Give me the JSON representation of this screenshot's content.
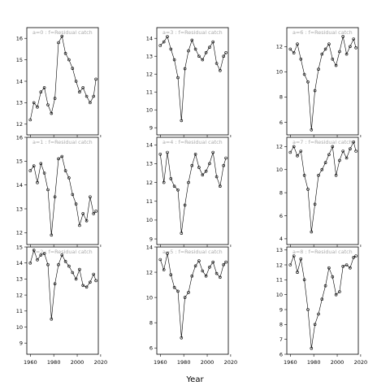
{
  "chart_data": {
    "type": "scatter",
    "title": "",
    "xlabel": "Year",
    "ylabel": "",
    "grid": false,
    "legend": "none",
    "layout": "3x3 small multiples, column-major (a=0,1,2 in column 1; a=3,4,5 in column 2; a=6,7,8 in column 3)",
    "series_style": "black points (open circles) with black line",
    "xlim": [
      1957,
      2018
    ],
    "xticks": [
      1960,
      1980,
      2000,
      2020
    ],
    "panels": [
      {
        "label": "a=0 : f=Residual catch",
        "ylim": [
          11.5,
          16.5
        ],
        "yticks": [
          12,
          13,
          14,
          15,
          16
        ],
        "x": [
          1960,
          1963,
          1966,
          1969,
          1972,
          1975,
          1978,
          1981,
          1984,
          1987,
          1990,
          1993,
          1996,
          1999,
          2002,
          2005,
          2008,
          2011,
          2014,
          2016
        ],
        "y": [
          12.2,
          13.0,
          12.8,
          13.5,
          13.7,
          12.9,
          12.5,
          13.2,
          15.8,
          16.1,
          15.3,
          15.0,
          14.6,
          14.0,
          13.5,
          13.7,
          13.3,
          13.0,
          13.3,
          14.1
        ]
      },
      {
        "label": "a=1 : f=Residual catch",
        "ylim": [
          11.5,
          16.0
        ],
        "yticks": [
          12,
          13,
          14,
          15,
          16
        ],
        "x": [
          1960,
          1963,
          1966,
          1969,
          1972,
          1975,
          1978,
          1981,
          1984,
          1987,
          1990,
          1993,
          1996,
          1999,
          2002,
          2005,
          2008,
          2011,
          2014,
          2016
        ],
        "y": [
          14.6,
          14.8,
          14.1,
          14.9,
          14.5,
          13.8,
          11.9,
          13.5,
          15.1,
          15.2,
          14.6,
          14.3,
          13.6,
          13.2,
          12.3,
          12.8,
          12.5,
          13.5,
          12.8,
          12.9
        ]
      },
      {
        "label": "a=2 : f=Residual catch",
        "ylim": [
          8.3,
          15.0
        ],
        "yticks": [
          9,
          10,
          11,
          12,
          13,
          14,
          15
        ],
        "x": [
          1960,
          1963,
          1966,
          1969,
          1972,
          1975,
          1978,
          1981,
          1984,
          1987,
          1990,
          1993,
          1996,
          1999,
          2002,
          2005,
          2008,
          2011,
          2014,
          2016
        ],
        "y": [
          14.0,
          14.8,
          14.2,
          14.5,
          14.6,
          13.9,
          10.5,
          12.7,
          13.9,
          14.5,
          14.1,
          13.8,
          13.4,
          13.0,
          13.6,
          12.6,
          12.5,
          12.8,
          13.3,
          12.9
        ]
      },
      {
        "label": "a=3 : f=Residual catch",
        "ylim": [
          8.6,
          14.6
        ],
        "yticks": [
          9,
          10,
          11,
          12,
          13,
          14
        ],
        "x": [
          1960,
          1963,
          1966,
          1969,
          1972,
          1975,
          1978,
          1981,
          1984,
          1987,
          1990,
          1993,
          1996,
          1999,
          2002,
          2005,
          2008,
          2011,
          2014,
          2016
        ],
        "y": [
          13.6,
          13.8,
          14.1,
          13.4,
          12.8,
          11.8,
          9.4,
          12.3,
          13.3,
          13.9,
          13.4,
          13.0,
          12.8,
          13.2,
          13.5,
          13.8,
          12.6,
          12.2,
          13.0,
          13.2
        ]
      },
      {
        "label": "a=4 : f=Residual catch",
        "ylim": [
          8.7,
          14.4
        ],
        "yticks": [
          9,
          10,
          11,
          12,
          13,
          14
        ],
        "x": [
          1960,
          1963,
          1966,
          1969,
          1972,
          1975,
          1978,
          1981,
          1984,
          1987,
          1990,
          1993,
          1996,
          1999,
          2002,
          2005,
          2008,
          2011,
          2014,
          2016
        ],
        "y": [
          13.5,
          12.0,
          13.6,
          12.2,
          11.8,
          11.6,
          9.3,
          10.8,
          12.0,
          12.9,
          13.5,
          12.8,
          12.4,
          12.6,
          13.0,
          13.6,
          12.3,
          11.8,
          12.9,
          13.3
        ]
      },
      {
        "label": "a=5 : f=Residual catch",
        "ylim": [
          5.5,
          14.0
        ],
        "yticks": [
          6,
          8,
          10,
          12,
          14
        ],
        "x": [
          1960,
          1963,
          1966,
          1969,
          1972,
          1975,
          1978,
          1981,
          1984,
          1987,
          1990,
          1993,
          1996,
          1999,
          2002,
          2005,
          2008,
          2011,
          2014,
          2016
        ],
        "y": [
          13.0,
          12.2,
          13.5,
          11.8,
          10.8,
          10.5,
          6.8,
          10.0,
          10.4,
          11.7,
          12.5,
          12.9,
          12.1,
          11.7,
          12.4,
          12.8,
          11.9,
          11.6,
          12.6,
          12.8
        ]
      },
      {
        "label": "a=6 : f=Residual catch",
        "ylim": [
          5.0,
          13.5
        ],
        "yticks": [
          6,
          8,
          10,
          12
        ],
        "x": [
          1960,
          1963,
          1966,
          1969,
          1972,
          1975,
          1978,
          1981,
          1984,
          1987,
          1990,
          1993,
          1996,
          1999,
          2002,
          2005,
          2008,
          2011,
          2014,
          2016
        ],
        "y": [
          11.8,
          11.5,
          12.2,
          11.0,
          9.8,
          9.2,
          5.4,
          8.5,
          10.2,
          11.4,
          11.8,
          12.2,
          11.0,
          10.5,
          11.6,
          12.8,
          11.4,
          12.0,
          12.6,
          11.9
        ]
      },
      {
        "label": "a=7 : f=Residual catch",
        "ylim": [
          3.5,
          12.8
        ],
        "yticks": [
          4,
          6,
          8,
          10,
          12
        ],
        "x": [
          1960,
          1963,
          1966,
          1969,
          1972,
          1975,
          1978,
          1981,
          1984,
          1987,
          1990,
          1993,
          1996,
          1999,
          2002,
          2005,
          2008,
          2011,
          2014,
          2016
        ],
        "y": [
          11.5,
          12.0,
          11.2,
          11.6,
          9.5,
          8.3,
          4.6,
          7.0,
          9.5,
          10.0,
          10.6,
          11.3,
          12.0,
          9.5,
          10.8,
          11.6,
          11.0,
          11.8,
          12.4,
          11.6
        ]
      },
      {
        "label": "a=8 : f=Residual catch",
        "ylim": [
          6.0,
          13.2
        ],
        "yticks": [
          6,
          7,
          8,
          9,
          10,
          11,
          12,
          13
        ],
        "x": [
          1960,
          1963,
          1966,
          1969,
          1972,
          1975,
          1978,
          1981,
          1984,
          1987,
          1990,
          1993,
          1996,
          1999,
          2002,
          2005,
          2008,
          2011,
          2014,
          2016
        ],
        "y": [
          12.0,
          12.6,
          11.5,
          12.4,
          11.0,
          9.0,
          6.4,
          8.0,
          8.7,
          9.7,
          10.6,
          11.8,
          11.2,
          10.0,
          10.2,
          11.9,
          12.0,
          11.8,
          12.5,
          12.6
        ]
      }
    ]
  }
}
